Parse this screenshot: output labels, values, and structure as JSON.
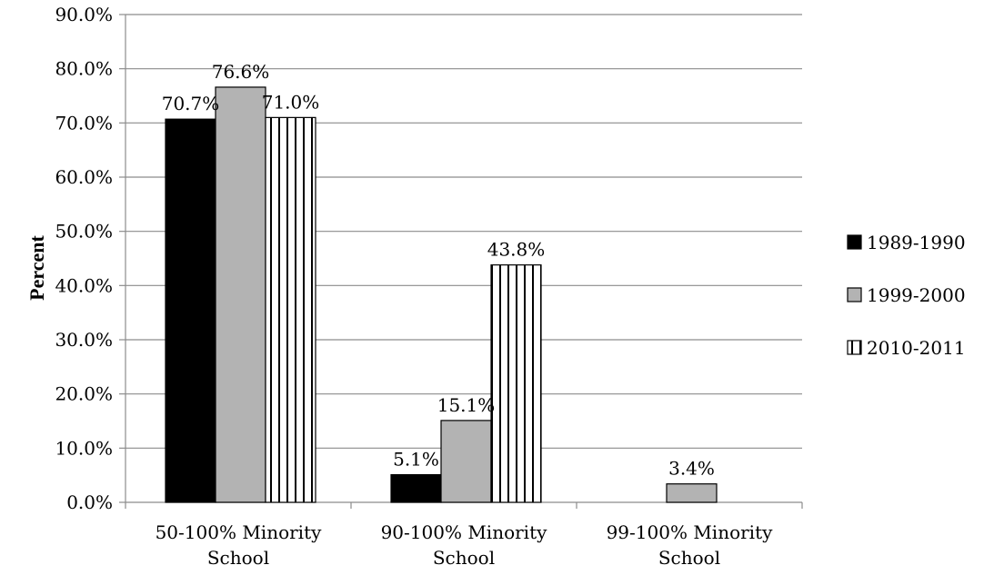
{
  "chart_data": {
    "type": "bar",
    "title": "",
    "xlabel": "",
    "ylabel": "Percent",
    "ylim": [
      0,
      90
    ],
    "ytick_step": 10,
    "yticks": [
      "0.0%",
      "10.0%",
      "20.0%",
      "30.0%",
      "40.0%",
      "50.0%",
      "60.0%",
      "70.0%",
      "80.0%",
      "90.0%"
    ],
    "grid": true,
    "legend_position": "right",
    "categories": [
      [
        "50-100% Minority",
        "School"
      ],
      [
        "90-100% Minority",
        "School"
      ],
      [
        "99-100% Minority",
        "School"
      ]
    ],
    "series": [
      {
        "name": "1989-1990",
        "fill": "solid-black",
        "color": "#000000",
        "values": [
          70.7,
          5.1,
          null
        ],
        "labels": [
          "70.7%",
          "5.1%",
          ""
        ]
      },
      {
        "name": "1999-2000",
        "fill": "solid-gray",
        "color": "#b3b3b3",
        "values": [
          76.6,
          15.1,
          3.4
        ],
        "labels": [
          "76.6%",
          "15.1%",
          "3.4%"
        ]
      },
      {
        "name": "2010-2011",
        "fill": "vertical-stripes",
        "color": "#000000",
        "values": [
          71.0,
          43.8,
          null
        ],
        "labels": [
          "71.0%",
          "43.8%",
          ""
        ]
      }
    ]
  }
}
